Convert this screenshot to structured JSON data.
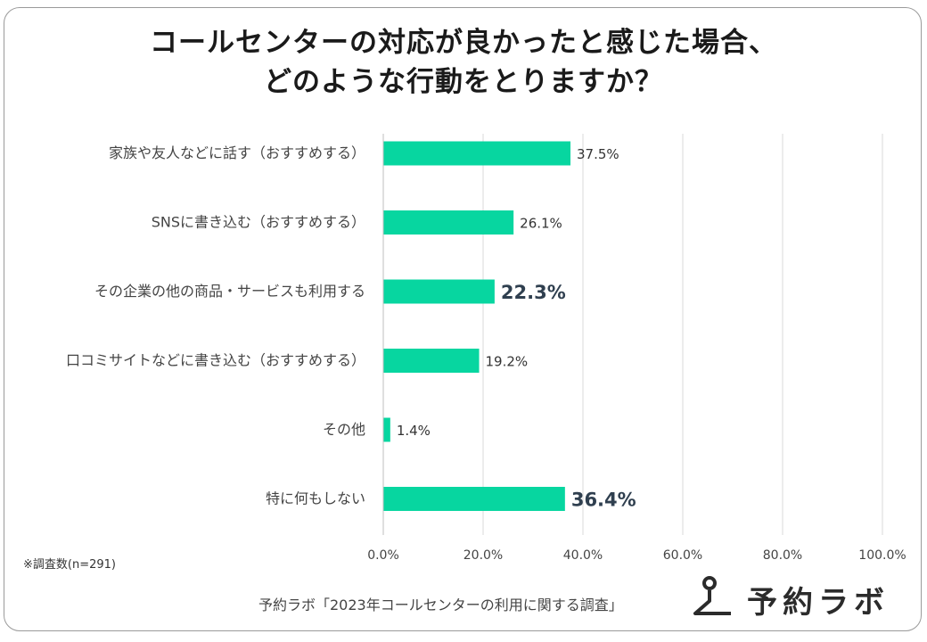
{
  "title_line1": "コールセンターの対応が良かったと感じた場合、",
  "title_line2": "どのような行動をとりますか？",
  "note": "※調査数(n=291)",
  "source": "予約ラボ「2023年コールセンターの利用に関する調査」",
  "logo_text": "予約ラボ",
  "logo_icon": "person-triangle-icon",
  "colors": {
    "bar": "#07d6a0",
    "grid": "#d9d9d9",
    "label_bold": "#2f3f4f"
  },
  "chart_data": {
    "type": "bar",
    "orientation": "horizontal",
    "categories": [
      "家族や友人などに話す（おすすめする）",
      "SNSに書き込む（おすすめする）",
      "その企業の他の商品・サービスも利用する",
      "口コミサイトなどに書き込む（おすすめする）",
      "その他",
      "特に何もしない"
    ],
    "values": [
      37.5,
      26.1,
      22.3,
      19.2,
      1.4,
      36.4
    ],
    "value_labels": [
      "37.5%",
      "26.1%",
      "22.3%",
      "19.2%",
      "1.4%",
      "36.4%"
    ],
    "highlighted": [
      false,
      false,
      true,
      false,
      false,
      true
    ],
    "xlim": [
      0,
      100
    ],
    "xticks": [
      0,
      20,
      40,
      60,
      80,
      100
    ],
    "xtick_labels": [
      "0.0%",
      "20.0%",
      "40.0%",
      "60.0%",
      "80.0%",
      "100.0%"
    ],
    "grid": true
  }
}
